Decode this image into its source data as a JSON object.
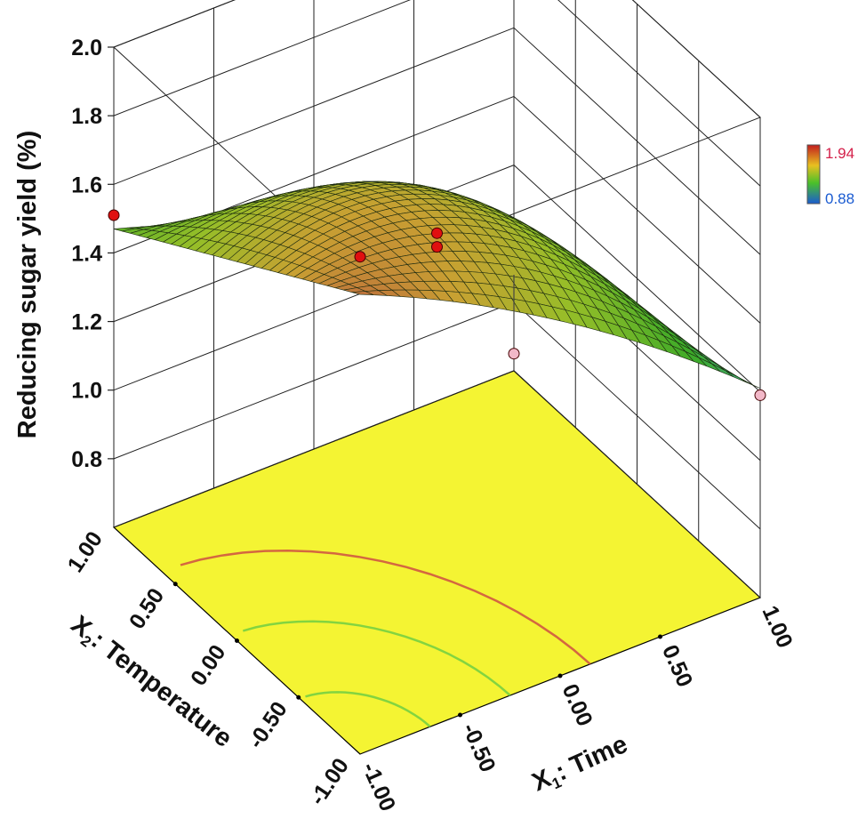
{
  "chart_data": {
    "type": "surface3d",
    "zlabel": "Reducing sugar yield (%)",
    "x1label": {
      "main": "X",
      "sub": "1",
      "rest": ": Time"
    },
    "x2label": {
      "main": "X",
      "sub": "2",
      "rest": ": Temperature"
    },
    "x1_ticks": [
      "-1.00",
      "-0.50",
      "0.00",
      "0.50",
      "1.00"
    ],
    "x2_ticks": [
      "-1.00",
      "-0.50",
      "0.00",
      "0.50",
      "1.00"
    ],
    "z_ticks": [
      "0.8",
      "1.0",
      "1.2",
      "1.4",
      "1.6",
      "1.8",
      "2.0"
    ],
    "zlim": [
      0.6,
      2.0
    ],
    "xlim": [
      -1,
      1
    ],
    "ylim": [
      -1,
      1
    ],
    "legend": {
      "max": "1.94",
      "min": "0.88",
      "max_color": "#d4204a",
      "min_color": "#1a5bd1"
    },
    "surface_corners": [
      {
        "x1": -1,
        "x2": -1,
        "z": 1.94
      },
      {
        "x1": 1,
        "x2": 1,
        "z": 0.88
      },
      {
        "x1": -1,
        "x2": 1,
        "z": 1.47
      },
      {
        "x1": 1,
        "x2": -1,
        "z": 1.21
      }
    ],
    "design_points": [
      {
        "x1": -1,
        "x2": -1,
        "z": 2.05,
        "color": "red"
      },
      {
        "x1": -1,
        "x2": 1,
        "z": 1.51,
        "color": "red"
      },
      {
        "x1": 1,
        "x2": -1,
        "z": 1.19,
        "color": "pink"
      },
      {
        "x1": 1,
        "x2": 1,
        "z": 0.65,
        "color": "pink"
      },
      {
        "x1": 0,
        "x2": 0,
        "z": 1.56,
        "color": "red"
      },
      {
        "x1": 0,
        "x2": 0,
        "z": 1.52,
        "color": "red"
      }
    ],
    "floor_color": "#f4f433"
  }
}
